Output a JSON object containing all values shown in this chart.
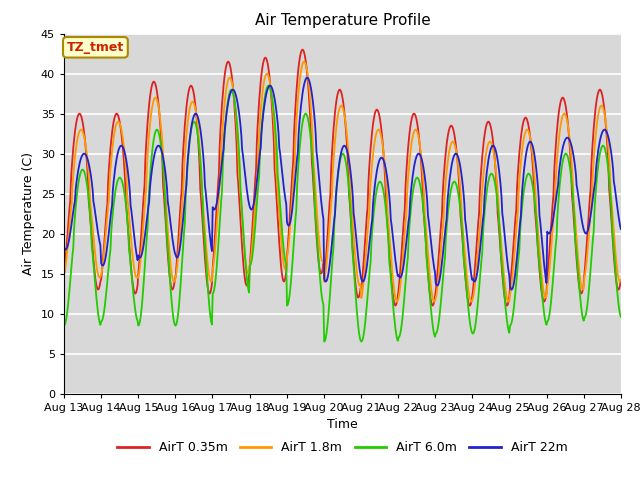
{
  "title": "Air Temperature Profile",
  "xlabel": "Time",
  "ylabel": "Air Temperature (C)",
  "ylim": [
    0,
    45
  ],
  "yticks": [
    0,
    5,
    10,
    15,
    20,
    25,
    30,
    35,
    40,
    45
  ],
  "date_labels": [
    "Aug 13",
    "Aug 14",
    "Aug 15",
    "Aug 16",
    "Aug 17",
    "Aug 18",
    "Aug 19",
    "Aug 20",
    "Aug 21",
    "Aug 22",
    "Aug 23",
    "Aug 24",
    "Aug 25",
    "Aug 26",
    "Aug 27",
    "Aug 28"
  ],
  "series": {
    "AirT 0.35m": {
      "color": "#dd2222",
      "lw": 1.3
    },
    "AirT 1.8m": {
      "color": "#ff9900",
      "lw": 1.3
    },
    "AirT 6.0m": {
      "color": "#22cc00",
      "lw": 1.3
    },
    "AirT 22m": {
      "color": "#2222cc",
      "lw": 1.3
    }
  },
  "annotation_text": "TZ_tmet",
  "annotation_color": "#cc2200",
  "annotation_bg": "#ffffcc",
  "plot_bg": "#d8d8d8",
  "grid_color": "#ffffff",
  "title_fontsize": 11,
  "axis_fontsize": 9,
  "tick_fontsize": 8
}
